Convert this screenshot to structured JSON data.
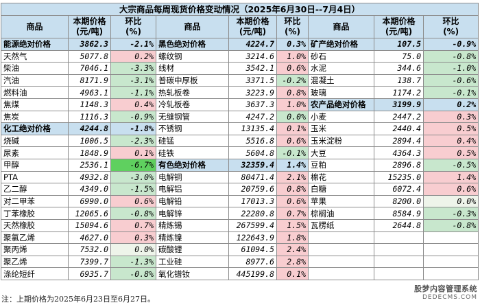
{
  "title": "大宗商品每周现货价格变动情况（2025年6月30日--7月4日）",
  "headers": [
    "商品",
    "本期价格\n(元/吨)",
    "环比\n(%)",
    "商品",
    "本期价格\n(元/吨)",
    "环比\n(%)",
    "商品",
    "本期价格\n(元/吨)",
    "环比\n(%)"
  ],
  "rows": [
    [
      [
        "能源绝对价格",
        "3862.3",
        "-2.1%",
        "cat"
      ],
      [
        "黑色绝对价格",
        "4224.7",
        "0.3%",
        "cat"
      ],
      [
        "矿产绝对价格",
        "107.5",
        "-0.9%",
        "cat"
      ]
    ],
    [
      [
        "天然气",
        "5077.8",
        "0.2%",
        "up"
      ],
      [
        "螺纹钢",
        "3214.6",
        "1.0%",
        "up"
      ],
      [
        "砂石",
        "75.0",
        "-0.8%",
        "down"
      ]
    ],
    [
      [
        "柴油",
        "7046.1",
        "-3.3%",
        "down"
      ],
      [
        "线材",
        "3542.1",
        "0.6%",
        "up"
      ],
      [
        "水泥",
        "344.6",
        "-1.0%",
        "down"
      ]
    ],
    [
      [
        "汽油",
        "8171.9",
        "-3.1%",
        "down"
      ],
      [
        "普碳中厚板",
        "3371.5",
        "-0.2%",
        "down"
      ],
      [
        "混凝土",
        "138.7",
        "-0.6%",
        "down"
      ]
    ],
    [
      [
        "燃料油",
        "4963.1",
        "-1.1%",
        "down"
      ],
      [
        "热轧板卷",
        "3223.9",
        "0.8%",
        "up"
      ],
      [
        "玻璃",
        "1174.2",
        "-0.1%",
        "down"
      ]
    ],
    [
      [
        "焦煤",
        "1148.3",
        "0.4%",
        "up"
      ],
      [
        "冷轧板卷",
        "3637.3",
        "1.0%",
        "up"
      ],
      [
        "农产品绝对价格",
        "3199.9",
        "0.2%",
        "cat"
      ]
    ],
    [
      [
        "焦炭",
        "1116.3",
        "-0.9%",
        "down"
      ],
      [
        "无缝钢管",
        "4247.2",
        "0.0%",
        "down"
      ],
      [
        "小麦",
        "2447.2",
        "0.3%",
        "up"
      ]
    ],
    [
      [
        "化工绝对价格",
        "4244.8",
        "-1.8%",
        "cat"
      ],
      [
        "不锈钢",
        "13135.4",
        "0.1%",
        "up"
      ],
      [
        "玉米",
        "2440.4",
        "0.5%",
        "up"
      ]
    ],
    [
      [
        "烧碱",
        "1006.5",
        "-2.3%",
        "down"
      ],
      [
        "硅锰",
        "5516.8",
        "0.6%",
        "up"
      ],
      [
        "玉米淀粉",
        "2894.4",
        "0.4%",
        "up"
      ]
    ],
    [
      [
        "尿素",
        "1848.9",
        "0.1%",
        "up"
      ],
      [
        "硅铁",
        "5604.8",
        "-0.1%",
        "down"
      ],
      [
        "大豆",
        "4364.3",
        "0.5%",
        "up"
      ]
    ],
    [
      [
        "甲醇",
        "2536.1",
        "-6.7%",
        "bigdown"
      ],
      [
        "有色绝对价格",
        "32359.4",
        "1.4%",
        "cat"
      ],
      [
        "豆粕",
        "2896.8",
        "-0.5%",
        "down"
      ]
    ],
    [
      [
        "PTA",
        "4932.8",
        "-3.0%",
        "down"
      ],
      [
        "电解铜",
        "80471.4",
        "2.1%",
        "up"
      ],
      [
        "棉花",
        "15235.0",
        "1.4%",
        "up"
      ]
    ],
    [
      [
        "乙二醇",
        "4349.0",
        "-1.5%",
        "down"
      ],
      [
        "电解铝",
        "20759.6",
        "0.8%",
        "up"
      ],
      [
        "白糖",
        "6072.4",
        "0.6%",
        "up"
      ]
    ],
    [
      [
        "对二甲苯",
        "6990.0",
        "0.6%",
        "up"
      ],
      [
        "电解铅",
        "17013.3",
        "0.6%",
        "up"
      ],
      [
        "苹果",
        "8200.0",
        "0.0%",
        "flat"
      ]
    ],
    [
      [
        "丁苯橡胶",
        "12065.6",
        "-0.8%",
        "down"
      ],
      [
        "电解锌",
        "22280.8",
        "0.7%",
        "up"
      ],
      [
        "棕榈油",
        "8584.9",
        "-0.3%",
        "down"
      ]
    ],
    [
      [
        "天然橡胶",
        "15094.6",
        "0.7%",
        "up"
      ],
      [
        "精炼锡",
        "267599.4",
        "1.5%",
        "up"
      ],
      [
        "瓦楞纸",
        "2644.8",
        "-0.8%",
        "down"
      ]
    ],
    [
      [
        "聚氯乙烯",
        "4627.0",
        "0.3%",
        "up"
      ],
      [
        "精炼镍",
        "122643.9",
        "1.8%",
        "up"
      ],
      [
        "",
        "",
        "",
        "empty"
      ]
    ],
    [
      [
        "聚丙烯",
        "7532.0",
        "0.0%",
        "flat"
      ],
      [
        "碳酸锂",
        "61094.5",
        "2.4%",
        "up"
      ],
      [
        "",
        "",
        "",
        "empty"
      ]
    ],
    [
      [
        "聚乙烯",
        "7399.7",
        "-1.3%",
        "down"
      ],
      [
        "工业硅",
        "8977.6",
        "2.8%",
        "up"
      ],
      [
        "",
        "",
        "",
        "empty"
      ]
    ],
    [
      [
        "涤纶短纤",
        "6935.7",
        "-0.8%",
        "down"
      ],
      [
        "氧化镨钕",
        "445199.8",
        "0.1%",
        "up"
      ],
      [
        "",
        "",
        "",
        "empty"
      ]
    ]
  ],
  "footnote": "注：上期价格为2025年6月23日至6月27日。",
  "watermark": {
    "cn": "股梦内容管理系统",
    "en": "DEDECMS.COM"
  },
  "colors": {
    "header_bg": "#c8dfef",
    "up": "#f8cdd0",
    "down": "#c8e7cd",
    "big_down": "#5fd05f"
  }
}
